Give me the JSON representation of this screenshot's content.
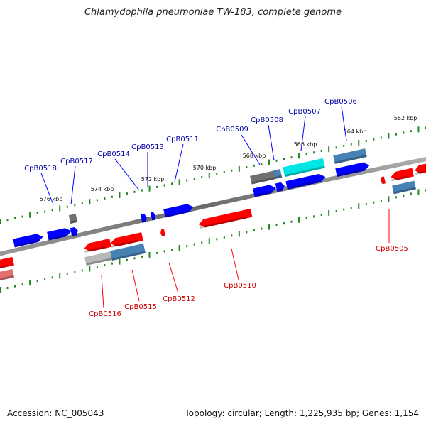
{
  "title": "Chlamydophila pneumoniae TW-183, complete genome",
  "footer": {
    "accession": "Accession: NC_005043",
    "summary": "Topology: circular; Length: 1,225,935 bp; Genes: 1,154"
  },
  "colors": {
    "forward_gene": "#0000ff",
    "reverse_gene": "#ff0000",
    "forward_label": "#0000aa",
    "reverse_label": "#cc0000",
    "backbone": "#808080",
    "tick": "#228822",
    "highlight_cyan": "#00e6e6",
    "steel_blue": "#4682b4",
    "gray_gene": "#707070"
  },
  "scale_labels": [
    "562 kbp",
    "564 kbp",
    "566 kbp",
    "568 kbp",
    "570 kbp",
    "572 kbp",
    "574 kbp",
    "576 kbp"
  ],
  "forward_labels": [
    "CpB0506",
    "CpB0507",
    "CpB0508",
    "CpB0509",
    "CpB0511",
    "CpB0513",
    "CpB0514",
    "CpB0517",
    "CpB0518"
  ],
  "reverse_labels": [
    "CpB0505",
    "CpB0510",
    "CpB0512",
    "CpB0515",
    "CpB0516"
  ]
}
